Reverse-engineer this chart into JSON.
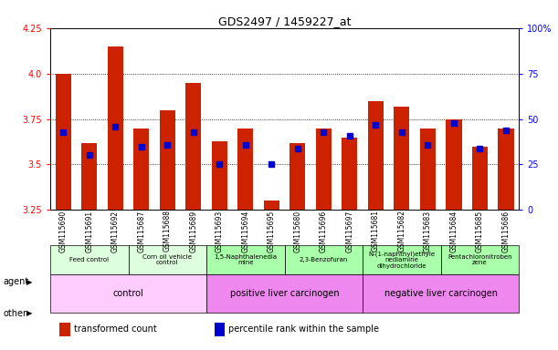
{
  "title": "GDS2497 / 1459227_at",
  "samples": [
    "GSM115690",
    "GSM115691",
    "GSM115692",
    "GSM115687",
    "GSM115688",
    "GSM115689",
    "GSM115693",
    "GSM115694",
    "GSM115695",
    "GSM115680",
    "GSM115696",
    "GSM115697",
    "GSM115681",
    "GSM115682",
    "GSM115683",
    "GSM115684",
    "GSM115685",
    "GSM115686"
  ],
  "transformed_count": [
    4.0,
    3.62,
    4.15,
    3.7,
    3.8,
    3.95,
    3.63,
    3.7,
    3.3,
    3.62,
    3.7,
    3.65,
    3.85,
    3.82,
    3.7,
    3.75,
    3.6,
    3.7
  ],
  "percentile_rank": [
    43,
    30,
    46,
    35,
    36,
    43,
    25,
    36,
    25,
    34,
    43,
    41,
    47,
    43,
    36,
    48,
    34,
    44
  ],
  "ylim_left": [
    3.25,
    4.25
  ],
  "ylim_right": [
    0,
    100
  ],
  "yticks_left": [
    3.25,
    3.5,
    3.75,
    4.0,
    4.25
  ],
  "yticks_right": [
    0,
    25,
    50,
    75,
    100
  ],
  "bar_color": "#cc2200",
  "dot_color": "#0000cc",
  "background_color": "#ffffff",
  "agent_groups": [
    {
      "label": "Feed control",
      "start": 0,
      "end": 3,
      "bg": "#ddffdd"
    },
    {
      "label": "Corn oil vehicle\ncontrol",
      "start": 3,
      "end": 6,
      "bg": "#ddffdd"
    },
    {
      "label": "1,5-Naphthalenedia\nmine",
      "start": 6,
      "end": 9,
      "bg": "#aaffaa"
    },
    {
      "label": "2,3-Benzofuran",
      "start": 9,
      "end": 12,
      "bg": "#aaffaa"
    },
    {
      "label": "N-(1-naphthyl)ethyle\nnediamine\ndihydrochloride",
      "start": 12,
      "end": 15,
      "bg": "#aaffaa"
    },
    {
      "label": "Pentachloronitroben\nzene",
      "start": 15,
      "end": 18,
      "bg": "#aaffaa"
    }
  ],
  "other_groups": [
    {
      "label": "control",
      "start": 0,
      "end": 6,
      "bg": "#ffccff"
    },
    {
      "label": "positive liver carcinogen",
      "start": 6,
      "end": 12,
      "bg": "#ee88ee"
    },
    {
      "label": "negative liver carcinogen",
      "start": 12,
      "end": 18,
      "bg": "#ee88ee"
    }
  ],
  "legend_items": [
    {
      "color": "#cc2200",
      "label": "transformed count"
    },
    {
      "color": "#0000cc",
      "label": "percentile rank within the sample"
    }
  ]
}
